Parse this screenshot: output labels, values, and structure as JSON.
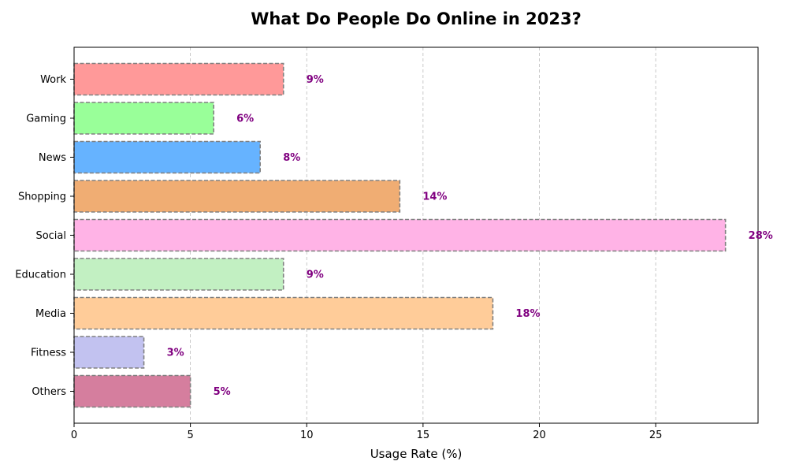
{
  "chart_data": {
    "type": "bar",
    "orientation": "horizontal",
    "title": "What Do People Do Online in 2023?",
    "xlabel": "Usage Rate (%)",
    "ylabel": "",
    "xlim": [
      0,
      29.4
    ],
    "xticks": [
      0,
      5,
      10,
      15,
      20,
      25
    ],
    "grid": "vertical dashed",
    "categories": [
      "Work",
      "Gaming",
      "News",
      "Shopping",
      "Social",
      "Education",
      "Media",
      "Fitness",
      "Others"
    ],
    "values": [
      9,
      6,
      8,
      14,
      28,
      9,
      18,
      3,
      5
    ],
    "value_labels": [
      "9%",
      "6%",
      "8%",
      "14%",
      "28%",
      "9%",
      "18%",
      "3%",
      "5%"
    ],
    "colors": [
      "#ff9999",
      "#99ff99",
      "#66b3ff",
      "#f0ad73",
      "#ffb3e6",
      "#c2f0c2",
      "#ffcc99",
      "#c2c2f0",
      "#d57e9e"
    ],
    "label_color": "#800080",
    "bar_edge_color": "#808080"
  }
}
